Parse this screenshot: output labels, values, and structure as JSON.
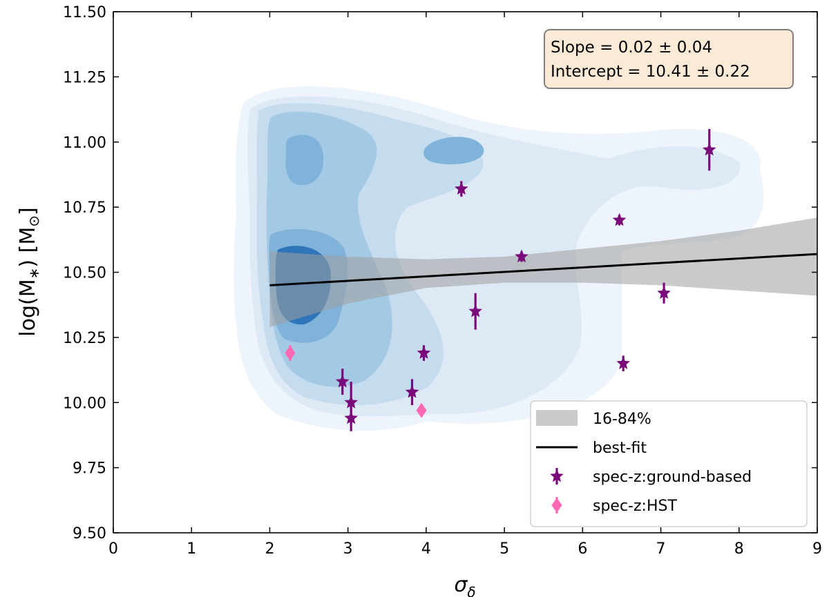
{
  "chart_data": {
    "type": "scatter",
    "xlabel_symbol": "σ",
    "xlabel_sub": "δ",
    "ylabel": "log(M",
    "ylabel_sub": "∗",
    "ylabel_tail": ") [M",
    "ylabel_sun": "⊙",
    "ylabel_end": "]",
    "xlim": [
      0,
      9
    ],
    "ylim": [
      9.5,
      11.5
    ],
    "x_ticks": [
      0,
      1,
      2,
      3,
      4,
      5,
      6,
      7,
      8,
      9
    ],
    "x_tick_labels": [
      "0",
      "1",
      "2",
      "3",
      "4",
      "5",
      "6",
      "7",
      "8",
      "9"
    ],
    "y_ticks": [
      9.5,
      9.75,
      10.0,
      10.25,
      10.5,
      10.75,
      11.0,
      11.25,
      11.5
    ],
    "y_tick_labels": [
      "9.50",
      "9.75",
      "10.00",
      "10.25",
      "10.50",
      "10.75",
      "11.00",
      "11.25",
      "11.50"
    ],
    "annotation": {
      "line1": "Slope = 0.02 ± 0.04",
      "line2": "Intercept = 10.41 ± 0.22"
    },
    "best_fit": {
      "x": [
        2.0,
        9.0
      ],
      "y": [
        10.45,
        10.57
      ]
    },
    "band_16_84": {
      "x": [
        2.0,
        3.0,
        4.0,
        5.0,
        6.0,
        7.0,
        8.0,
        9.0
      ],
      "upper": [
        10.58,
        10.56,
        10.55,
        10.56,
        10.59,
        10.62,
        10.66,
        10.71
      ],
      "lower": [
        10.29,
        10.38,
        10.44,
        10.46,
        10.46,
        10.45,
        10.43,
        10.41
      ]
    },
    "series": [
      {
        "name": "spec-z:ground-based",
        "color": "#7a0a7a",
        "marker": "star",
        "points": [
          {
            "x": 2.93,
            "y": 10.08,
            "err": 0.05
          },
          {
            "x": 3.04,
            "y": 10.0,
            "err": 0.08
          },
          {
            "x": 3.04,
            "y": 9.94,
            "err": 0.05
          },
          {
            "x": 3.82,
            "y": 10.04,
            "err": 0.05
          },
          {
            "x": 3.97,
            "y": 10.19,
            "err": 0.03
          },
          {
            "x": 4.45,
            "y": 10.82,
            "err": 0.03
          },
          {
            "x": 4.63,
            "y": 10.35,
            "err": 0.07
          },
          {
            "x": 5.22,
            "y": 10.56,
            "err": 0.02
          },
          {
            "x": 6.47,
            "y": 10.7,
            "err": 0.02
          },
          {
            "x": 6.52,
            "y": 10.15,
            "err": 0.03
          },
          {
            "x": 7.04,
            "y": 10.42,
            "err": 0.04
          },
          {
            "x": 7.62,
            "y": 10.97,
            "err": 0.08
          }
        ]
      },
      {
        "name": "spec-z:HST",
        "color": "#ff69b4",
        "marker": "diamond",
        "points": [
          {
            "x": 2.26,
            "y": 10.19,
            "err": 0.03
          },
          {
            "x": 3.94,
            "y": 9.97,
            "err": 0.0
          }
        ]
      }
    ],
    "density_levels": [
      {
        "level": 1,
        "color": "#eef4fb"
      },
      {
        "level": 2,
        "color": "#dde9f5"
      },
      {
        "level": 3,
        "color": "#c5dbee"
      },
      {
        "level": 4,
        "color": "#a4c9e4"
      },
      {
        "level": 5,
        "color": "#7fb3d9"
      },
      {
        "level": 6,
        "color": "#2e75b9"
      }
    ],
    "legend": {
      "band_label": "16-84%",
      "line_label": "best-fit",
      "ground_label": "spec-z:ground-based",
      "hst_label": "spec-z:HST"
    }
  }
}
